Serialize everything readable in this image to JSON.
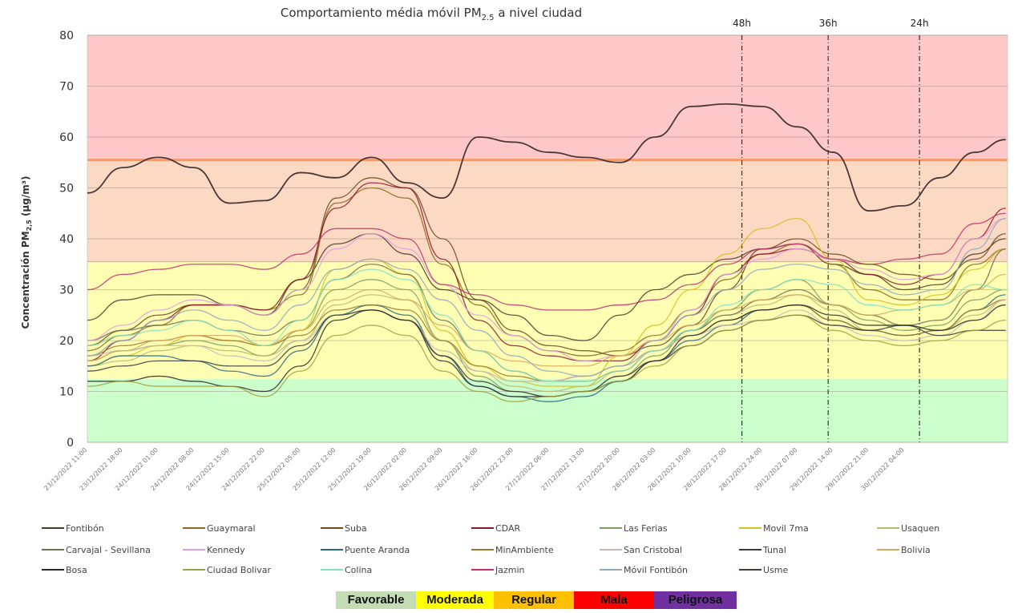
{
  "chart_data": {
    "type": "line",
    "title": "Comportamiento média móvil PM",
    "title_sub": "2.5",
    "title_suffix": " a nivel ciudad",
    "ylabel": "Concentración PM",
    "ylabel_sub": "2,5",
    "ylabel_suffix": " (µg/m³)",
    "ylim": [
      0,
      80
    ],
    "yticks": [
      0,
      10,
      20,
      30,
      40,
      50,
      60,
      70,
      80
    ],
    "grid": true,
    "legend_position": "bottom",
    "tick_labels": [
      "23/12/2022 11:00",
      "23/12/2022 18:00",
      "24/12/2022 01:00",
      "24/12/2022 08:00",
      "24/12/2022 15:00",
      "24/12/2022 22:00",
      "25/12/2022 05:00",
      "25/12/2022 12:00",
      "25/12/2022 19:00",
      "26/12/2022 02:00",
      "26/12/2022 09:00",
      "26/12/2022 16:00",
      "26/12/2022 23:00",
      "27/12/2022 06:00",
      "27/12/2022 13:00",
      "27/12/2022 20:00",
      "28/12/2022 03:00",
      "28/12/2022 10:00",
      "28/12/2022 17:00",
      "28/12/2022 24:00",
      "29/12/2022 07:00",
      "29/12/2022 14:00",
      "29/12/2022 21:00",
      "30/12/2022 04:00"
    ],
    "x": [
      "23/12/2022 11:00",
      "23/12/2022 18:00",
      "24/12/2022 01:00",
      "24/12/2022 08:00",
      "24/12/2022 15:00",
      "24/12/2022 22:00",
      "25/12/2022 05:00",
      "25/12/2022 12:00",
      "25/12/2022 19:00",
      "26/12/2022 02:00",
      "26/12/2022 09:00",
      "26/12/2022 16:00",
      "26/12/2022 23:00",
      "27/12/2022 06:00",
      "27/12/2022 13:00",
      "27/12/2022 20:00",
      "28/12/2022 03:00",
      "28/12/2022 10:00",
      "28/12/2022 17:00",
      "28/12/2022 24:00",
      "29/12/2022 07:00",
      "29/12/2022 14:00",
      "29/12/2022 21:00",
      "30/12/2022 04:00",
      "30/12/2022 11:00",
      "30/12/2022 18:00",
      "31/12/2022 00:00"
    ],
    "bands": [
      {
        "from": 0,
        "to": 12.5,
        "color": "#ccffcc"
      },
      {
        "from": 12.5,
        "to": 35.5,
        "color": "#ffffb4"
      },
      {
        "from": 35.5,
        "to": 55.5,
        "color": "#fcd9c2"
      },
      {
        "from": 55.5,
        "to": 80,
        "color": "#ffc8c8"
      }
    ],
    "markers": [
      {
        "label": "48h",
        "x": "28/12/2022 20:00"
      },
      {
        "label": "36h",
        "x": "29/12/2022 13:00"
      },
      {
        "label": "24h",
        "x": "30/12/2022 07:00"
      }
    ],
    "series": [
      {
        "name": "Fontibón",
        "color": "#4a3a2a",
        "values": [
          24,
          28,
          29,
          29,
          27,
          25,
          32,
          39,
          41,
          37,
          30,
          28,
          25,
          21,
          20,
          25,
          30,
          33,
          36,
          38,
          39,
          35,
          33,
          30,
          31,
          37,
          40
        ]
      },
      {
        "name": "Guaymaral",
        "color": "#8a6a20",
        "values": [
          18,
          21,
          23,
          27,
          27,
          26,
          29,
          47,
          50,
          48,
          35,
          27,
          21,
          18,
          17,
          18,
          21,
          26,
          32,
          37,
          39,
          35,
          30,
          28,
          28,
          35,
          38
        ]
      },
      {
        "name": "Suba",
        "color": "#6b4a1e",
        "values": [
          19,
          22,
          25,
          27,
          27,
          25,
          30,
          48,
          52,
          50,
          40,
          28,
          22,
          19,
          18,
          17,
          19,
          23,
          30,
          38,
          40,
          37,
          35,
          33,
          32,
          36,
          41
        ]
      },
      {
        "name": "CDAR",
        "color": "#8b1a2a",
        "values": [
          16,
          20,
          24,
          27,
          27,
          26,
          32,
          46,
          51,
          50,
          36,
          24,
          19,
          17,
          16,
          16,
          20,
          25,
          33,
          37,
          38,
          36,
          33,
          31,
          33,
          40,
          46
        ]
      },
      {
        "name": "Las Ferias",
        "color": "#7aa05a",
        "values": [
          16,
          18,
          19,
          20,
          19,
          17,
          22,
          30,
          32,
          30,
          20,
          13,
          10,
          9,
          10,
          13,
          17,
          22,
          26,
          30,
          32,
          27,
          24,
          22,
          23,
          28,
          30
        ]
      },
      {
        "name": "Movil 7ma",
        "color": "#d6c020",
        "values": [
          15,
          17,
          19,
          21,
          20,
          19,
          22,
          34,
          36,
          33,
          22,
          15,
          12,
          11,
          11,
          17,
          23,
          30,
          37,
          42,
          44,
          36,
          28,
          27,
          29,
          34,
          38
        ]
      },
      {
        "name": "Usaquen",
        "color": "#b8b870",
        "values": [
          15,
          16,
          18,
          19,
          18,
          17,
          20,
          27,
          29,
          28,
          20,
          14,
          11,
          10,
          11,
          14,
          18,
          22,
          25,
          27,
          29,
          26,
          22,
          21,
          22,
          25,
          28
        ]
      },
      {
        "name": "Carvajal - Sevillana",
        "color": "#707050",
        "values": [
          20,
          22,
          23,
          24,
          22,
          21,
          24,
          32,
          35,
          33,
          24,
          18,
          14,
          12,
          12,
          14,
          18,
          22,
          25,
          28,
          30,
          27,
          25,
          23,
          24,
          30,
          38
        ]
      },
      {
        "name": "Kennedy",
        "color": "#e0a0e0",
        "values": [
          20,
          23,
          26,
          28,
          27,
          25,
          30,
          38,
          41,
          38,
          31,
          25,
          21,
          18,
          16,
          17,
          20,
          26,
          33,
          36,
          38,
          36,
          34,
          32,
          33,
          40,
          44
        ]
      },
      {
        "name": "Puente Aranda",
        "color": "#2a6a80",
        "values": [
          15,
          17,
          17,
          16,
          14,
          13,
          18,
          25,
          27,
          25,
          17,
          11,
          9,
          8,
          9,
          12,
          16,
          20,
          23,
          26,
          27,
          24,
          22,
          21,
          22,
          26,
          29
        ]
      },
      {
        "name": "MinAmbiente",
        "color": "#a07830",
        "values": [
          17,
          19,
          20,
          21,
          20,
          19,
          21,
          26,
          27,
          26,
          20,
          15,
          13,
          12,
          13,
          15,
          18,
          21,
          24,
          26,
          27,
          24,
          22,
          21,
          22,
          26,
          28
        ]
      },
      {
        "name": "San Cristobal",
        "color": "#c8b8b8",
        "values": [
          17,
          18,
          19,
          19,
          17,
          16,
          20,
          25,
          26,
          24,
          18,
          14,
          12,
          12,
          13,
          15,
          18,
          21,
          23,
          24,
          26,
          23,
          21,
          20,
          21,
          24,
          28
        ]
      },
      {
        "name": "Tunal",
        "color": "#3a3a3a",
        "values": [
          14,
          15,
          16,
          16,
          15,
          15,
          19,
          25,
          26,
          24,
          17,
          12,
          10,
          9,
          10,
          13,
          16,
          19,
          22,
          24,
          25,
          23,
          22,
          23,
          21,
          22,
          22
        ]
      },
      {
        "name": "Bolivia",
        "color": "#d8a860",
        "values": [
          16,
          18,
          20,
          21,
          21,
          19,
          22,
          28,
          30,
          28,
          23,
          18,
          16,
          15,
          15,
          17,
          20,
          23,
          26,
          28,
          29,
          27,
          25,
          26,
          27,
          30,
          33
        ]
      },
      {
        "name": "Bosa",
        "color": "#2a2a2a",
        "values": [
          12,
          12,
          13,
          12,
          11,
          10,
          15,
          24,
          26,
          24,
          16,
          11,
          9,
          9,
          10,
          12,
          16,
          21,
          24,
          26,
          27,
          25,
          23,
          23,
          22,
          24,
          27
        ]
      },
      {
        "name": "Ciudad Bolivar",
        "color": "#a0a040",
        "values": [
          11,
          12,
          11,
          11,
          11,
          9,
          14,
          21,
          23,
          21,
          14,
          10,
          8,
          9,
          10,
          12,
          15,
          19,
          22,
          24,
          25,
          22,
          20,
          19,
          20,
          22,
          24
        ]
      },
      {
        "name": "Colina",
        "color": "#80e0c0",
        "values": [
          19,
          21,
          22,
          24,
          22,
          19,
          24,
          32,
          34,
          32,
          25,
          18,
          14,
          12,
          12,
          14,
          18,
          22,
          27,
          30,
          32,
          31,
          27,
          26,
          27,
          31,
          30
        ]
      },
      {
        "name": "Jazmin",
        "color": "#c03070",
        "values": [
          30,
          33,
          34,
          35,
          35,
          34,
          37,
          42,
          42,
          40,
          31,
          29,
          27,
          26,
          26,
          27,
          28,
          31,
          35,
          38,
          39,
          36,
          35,
          36,
          37,
          43,
          45
        ]
      },
      {
        "name": "Móvil Fontibón",
        "color": "#90a8c0",
        "values": [
          17,
          20,
          24,
          26,
          24,
          22,
          27,
          34,
          36,
          34,
          28,
          22,
          17,
          14,
          13,
          15,
          20,
          25,
          30,
          34,
          35,
          34,
          31,
          29,
          30,
          38,
          44
        ]
      },
      {
        "name": "Usme",
        "color": "#4a3838",
        "values": [
          49,
          54,
          56,
          54,
          47,
          47.5,
          53,
          52,
          56,
          51,
          48,
          60,
          59,
          57,
          56,
          55,
          60,
          66,
          66.5,
          66,
          62,
          57,
          45.5,
          46.5,
          52,
          57,
          59.5
        ]
      }
    ]
  },
  "categories": [
    {
      "label": "Favorable",
      "color": "#c3dcb4"
    },
    {
      "label": "Moderada",
      "color": "#ffff00"
    },
    {
      "label": "Regular",
      "color": "#ffc000"
    },
    {
      "label": "Mala",
      "color": "#ff0000"
    },
    {
      "label": "Peligrosa",
      "color": "#7030a0"
    }
  ]
}
